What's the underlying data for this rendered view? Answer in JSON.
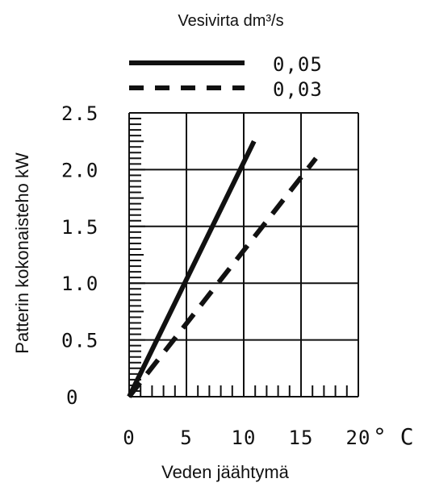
{
  "chart_data": {
    "type": "line",
    "legend_title": "Vesivirta dm³/s",
    "legend_position": "top",
    "xlabel": "Veden jäähtymä",
    "ylabel": "Patterin kokonaisteho kW",
    "x_unit": "° C",
    "xlim": [
      0,
      20
    ],
    "ylim": [
      0,
      2.5
    ],
    "grid": true,
    "x_ticks": [
      "0",
      "5",
      "10",
      "15",
      "20"
    ],
    "y_ticks": [
      "0",
      "0.5",
      "1.0",
      "1.5",
      "2.0",
      "2.5"
    ],
    "series": [
      {
        "name": "0,05",
        "style": "solid",
        "color": "#111111",
        "x": [
          0,
          10.9
        ],
        "y": [
          0,
          2.25
        ]
      },
      {
        "name": "0,03",
        "style": "dashed",
        "color": "#111111",
        "x": [
          0,
          16.3
        ],
        "y": [
          0,
          2.1
        ]
      }
    ]
  }
}
